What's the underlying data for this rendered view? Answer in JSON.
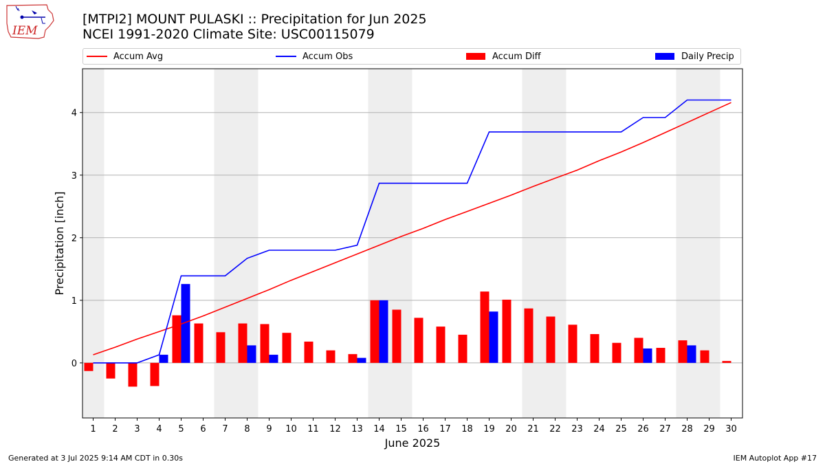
{
  "header": {
    "title_line1": "[MTPI2] MOUNT PULASKI :: Precipitation for Jun 2025",
    "title_line2": "NCEI 1991-2020 Climate Site: USC00115079"
  },
  "logo": {
    "text": "IEM"
  },
  "footer": {
    "generated": "Generated at 3 Jul 2025 9:14 AM CDT in 0.30s",
    "app": "IEM Autoplot App #17"
  },
  "colors": {
    "avg": "#ff0000",
    "obs": "#0000ff",
    "diff": "#ff0000",
    "daily": "#0000ff",
    "weekend_band": "#eeeeee",
    "grid": "#b0b0b0"
  },
  "chart_data": {
    "type": "bar",
    "title": "[MTPI2] MOUNT PULASKI :: Precipitation for Jun 2025",
    "subtitle": "NCEI 1991-2020 Climate Site: USC00115079",
    "xlabel": "June 2025",
    "ylabel": "Precipitation [inch]",
    "ylim": [
      -0.88,
      4.7
    ],
    "yticks": [
      0,
      1,
      2,
      3,
      4
    ],
    "grid": "horizontal",
    "legend_position": "top",
    "legend": {
      "avg": "Accum Avg",
      "obs": "Accum Obs",
      "diff": "Accum Diff",
      "daily": "Daily Precip"
    },
    "days": [
      1,
      2,
      3,
      4,
      5,
      6,
      7,
      8,
      9,
      10,
      11,
      12,
      13,
      14,
      15,
      16,
      17,
      18,
      19,
      20,
      21,
      22,
      23,
      24,
      25,
      26,
      27,
      28,
      29,
      30
    ],
    "shaded_days": [
      1,
      7,
      8,
      14,
      15,
      21,
      22,
      28,
      29
    ],
    "series": [
      {
        "name": "Accum Avg",
        "kind": "line",
        "values": [
          0.13,
          0.25,
          0.38,
          0.5,
          0.62,
          0.75,
          0.89,
          1.03,
          1.17,
          1.32,
          1.46,
          1.6,
          1.74,
          1.88,
          2.02,
          2.15,
          2.29,
          2.42,
          2.55,
          2.68,
          2.82,
          2.95,
          3.08,
          3.23,
          3.37,
          3.52,
          3.68,
          3.84,
          4.0,
          4.16
        ]
      },
      {
        "name": "Accum Obs",
        "kind": "line",
        "values": [
          0.0,
          0.0,
          0.0,
          0.13,
          1.39,
          1.39,
          1.39,
          1.67,
          1.8,
          1.8,
          1.8,
          1.8,
          1.88,
          2.87,
          2.87,
          2.87,
          2.87,
          2.87,
          3.69,
          3.69,
          3.69,
          3.69,
          3.69,
          3.69,
          3.69,
          3.92,
          3.92,
          4.2,
          4.2,
          4.2
        ]
      },
      {
        "name": "Accum Diff",
        "kind": "bar",
        "values": [
          -0.13,
          -0.25,
          -0.38,
          -0.37,
          0.76,
          0.63,
          0.49,
          0.63,
          0.62,
          0.48,
          0.34,
          0.2,
          0.14,
          1.0,
          0.85,
          0.72,
          0.58,
          0.45,
          1.14,
          1.01,
          0.87,
          0.74,
          0.61,
          0.46,
          0.32,
          0.4,
          0.24,
          0.36,
          0.2,
          0.03
        ]
      },
      {
        "name": "Daily Precip",
        "kind": "bar",
        "values": [
          0.0,
          0.0,
          0.0,
          0.13,
          1.26,
          0.0,
          0.0,
          0.28,
          0.13,
          0.0,
          0.0,
          0.0,
          0.08,
          1.0,
          0.0,
          0.0,
          0.0,
          0.0,
          0.82,
          0.0,
          0.0,
          0.0,
          0.0,
          0.0,
          0.0,
          0.23,
          0.0,
          0.28,
          0.0,
          0.0
        ]
      }
    ]
  }
}
